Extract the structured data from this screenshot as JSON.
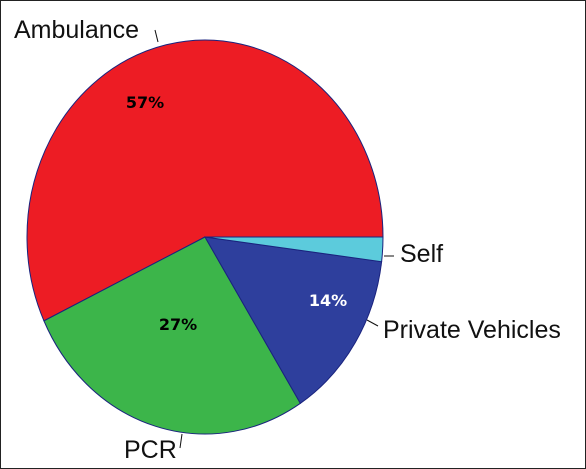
{
  "chart_data": {
    "type": "pie",
    "categories": [
      "Ambulance",
      "PCR",
      "Private Vehicles",
      "Self"
    ],
    "values": [
      57,
      27,
      14,
      2
    ],
    "value_labels": [
      "57%",
      "27%",
      "14%",
      null
    ],
    "colors": [
      "#ed1c24",
      "#3cb54a",
      "#2e3f9d",
      "#5ccbdc"
    ]
  }
}
